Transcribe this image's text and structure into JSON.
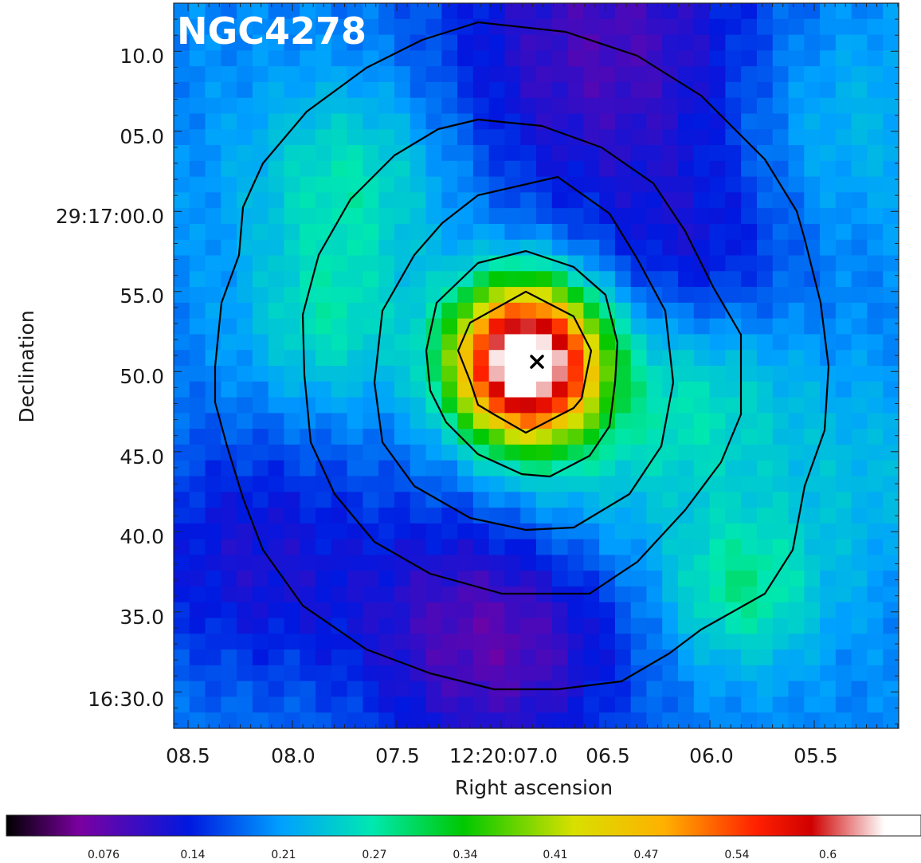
{
  "object_name": "NGC4278",
  "axes": {
    "xlabel": "Right ascension",
    "ylabel": "Declination",
    "x_ticks": [
      "08.5",
      "08.0",
      "07.5",
      "12:20:07.0",
      "06.5",
      "06.0",
      "05.5"
    ],
    "y_ticks": [
      "10.0",
      "05.0",
      "29:17:00.0",
      "55.0",
      "50.0",
      "45.0",
      "40.0",
      "35.0",
      "16:30.0"
    ]
  },
  "colorbar": {
    "ticks": [
      "0.076",
      "0.14",
      "0.21",
      "0.27",
      "0.34",
      "0.41",
      "0.47",
      "0.54",
      "0.6"
    ],
    "colormap": [
      "#000000",
      "#7b00a0",
      "#0018e0",
      "#00a0ff",
      "#00e8b0",
      "#00c800",
      "#d8e000",
      "#ffb000",
      "#ff2000",
      "#d00000",
      "#ffffff"
    ]
  },
  "center_marker": "cross-icon",
  "contour_color": "#000000"
}
